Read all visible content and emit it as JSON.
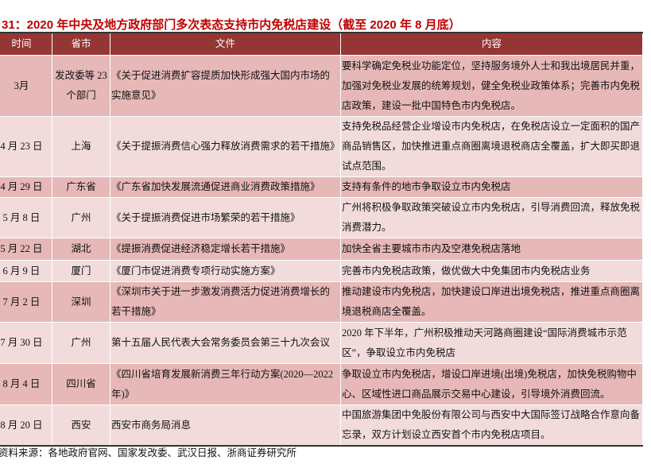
{
  "title": "31：2020 年中央及地方政府部门多次表态支持市内免税店建设（截至 2020 年 8 月底）",
  "columns": [
    "时间",
    "省市",
    "文件",
    "内容"
  ],
  "rows": [
    {
      "time": "3月",
      "region": "发改委等 23 个部门",
      "document": "《关于促进消费扩容提质加快形成强大国内市场的实施意见》",
      "content": "要科学确定免税业功能定位，坚持服务境外人士和我出境居民并重，加强对免税业发展的统筹规划，健全免税业政策体系；完善市内免税店政策，建设一批中国特色市内免税店。"
    },
    {
      "time": "4 月 23 日",
      "region": "上海",
      "document": "《关于提振消费信心强力释放消费需求的若干措施》",
      "content": "支持免税品经营企业增设市内免税店，在免税店设立一定面积的国产商品销售区，加快推进重点商圈离境退税商店全覆盖，扩大即买即退试点范围。"
    },
    {
      "time": "4 月 29 日",
      "region": "广东省",
      "document": "《广东省加快发展流通促进商业消费政策措施》",
      "content": "支持有条件的地市争取设立市内免税店"
    },
    {
      "time": "5 月 8 日",
      "region": "广州",
      "document": "《关于提振消费促进市场繁荣的若干措施》",
      "content": "广州将积极争取政策突破设立市内免税店，引导消费回流，释放免税消费潜力。"
    },
    {
      "time": "5 月 22 日",
      "region": "湖北",
      "document": "《提振消费促进经济稳定增长若干措施》",
      "content": "加快全省主要城市市内及空港免税店落地"
    },
    {
      "time": "6 月 9 日",
      "region": "厦门",
      "document": "《厦门市促进消费专项行动实施方案》",
      "content": "完善市内免税店政策，做优做大中免集团市内免税店业务"
    },
    {
      "time": "7 月 2 日",
      "region": "深圳",
      "document": "《深圳市关于进一步激发消费活力促进消费增长的若干措施》",
      "content": "推动建设市内免税店，加快建设口岸进出境免税店，推进重点商圈离境退税商店全覆盖。"
    },
    {
      "time": "7 月 30 日",
      "region": "广州",
      "document": "第十五届人民代表大会常务委员会第三十九次会议",
      "content": "2020 年下半年，广州积极推动天河路商圈建设“国际消费城市示范区”，争取设立市内免税店"
    },
    {
      "time": "8 月 4 日",
      "region": "四川省",
      "document": "《四川省培育发展新消费三年行动方案(2020—2022 年)》",
      "content": "争取设立市内免税店，增设口岸进境(出境)免税店，加快免税购物中心、区域性进口商品展示交易中心建设，引导境外消费回流。"
    },
    {
      "time": "8 月 20 日",
      "region": "西安",
      "document": "西安市商务局消息",
      "content": "中国旅游集团中免股份有限公司与西安中大国际签订战略合作意向备忘录，双方计划设立西安首个市内免税店项目。"
    }
  ],
  "source": "资料来源：各地政府官网、国家发改委、武汉日报、浙商证券研究所",
  "colors": {
    "title": "#c00000",
    "header_bg": "#943634",
    "row_dark": "#e6b8b7",
    "row_light": "#f2dcdb"
  }
}
